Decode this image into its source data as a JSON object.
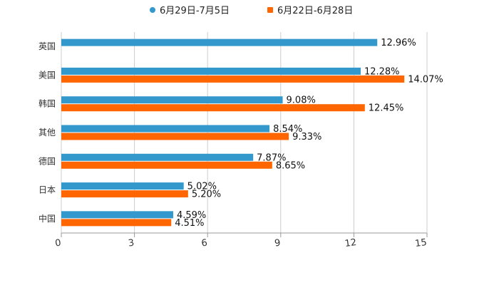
{
  "chart_data": {
    "type": "bar",
    "orientation": "horizontal",
    "title": "",
    "xlabel": "",
    "ylabel": "",
    "xlim": [
      0,
      15
    ],
    "ticks": [
      0,
      3,
      6,
      9,
      12,
      15
    ],
    "categories": [
      "英国",
      "美国",
      "韩国",
      "其他",
      "德国",
      "日本",
      "中国"
    ],
    "series": [
      {
        "name": "6月29日-7月5日",
        "color": "#3399cc",
        "marker": "circle",
        "values": [
          12.96,
          12.28,
          9.08,
          8.54,
          7.87,
          5.02,
          4.59
        ],
        "labels": [
          "12.96%",
          "12.28%",
          "9.08%",
          "8.54%",
          "7.87%",
          "5.02%",
          "4.59%"
        ]
      },
      {
        "name": "6月22日-6月28日",
        "color": "#ff6600",
        "marker": "square",
        "values": [
          null,
          14.07,
          12.45,
          9.33,
          8.65,
          5.2,
          4.51
        ],
        "labels": [
          "",
          "14.07%",
          "12.45%",
          "9.33%",
          "8.65%",
          "5.20%",
          "4.51%"
        ]
      }
    ],
    "grid": true,
    "legend": "top-center"
  }
}
